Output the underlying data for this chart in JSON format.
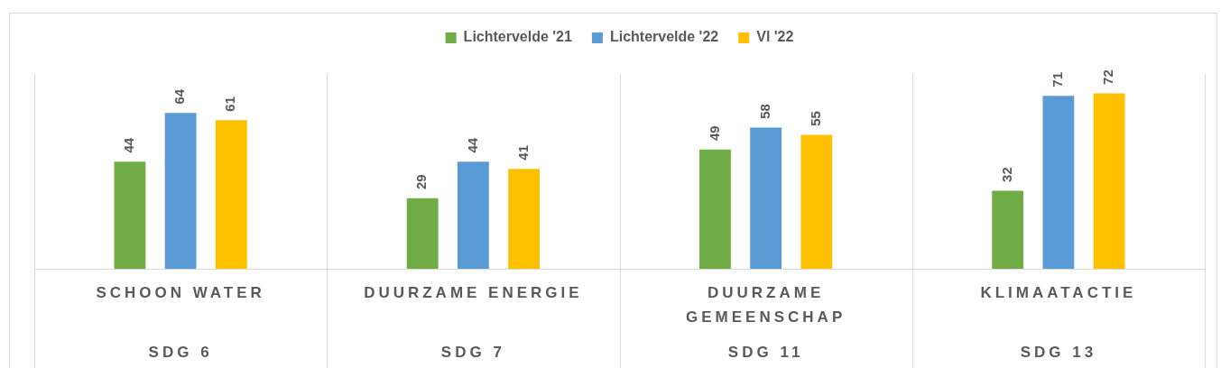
{
  "chart_data": {
    "type": "bar",
    "categories": [
      "SCHOON WATER",
      "DUURZAME ENERGIE",
      "DUURZAME GEMEENSCHAP",
      "KLIMAATACTIE"
    ],
    "series": [
      {
        "name": "Lichtervelde '21",
        "color": "#70ad47",
        "values": [
          44,
          29,
          49,
          32
        ]
      },
      {
        "name": "Lichtervelde '22",
        "color": "#5b9bd5",
        "values": [
          64,
          44,
          58,
          71
        ]
      },
      {
        "name": "Vl '22",
        "color": "#ffc000",
        "values": [
          61,
          41,
          55,
          72
        ]
      }
    ],
    "annotations": [
      "SDG 6",
      "SDG 7",
      "SDG 11",
      "SDG 13"
    ],
    "data_labels": true,
    "legend": "top",
    "grid": false
  }
}
